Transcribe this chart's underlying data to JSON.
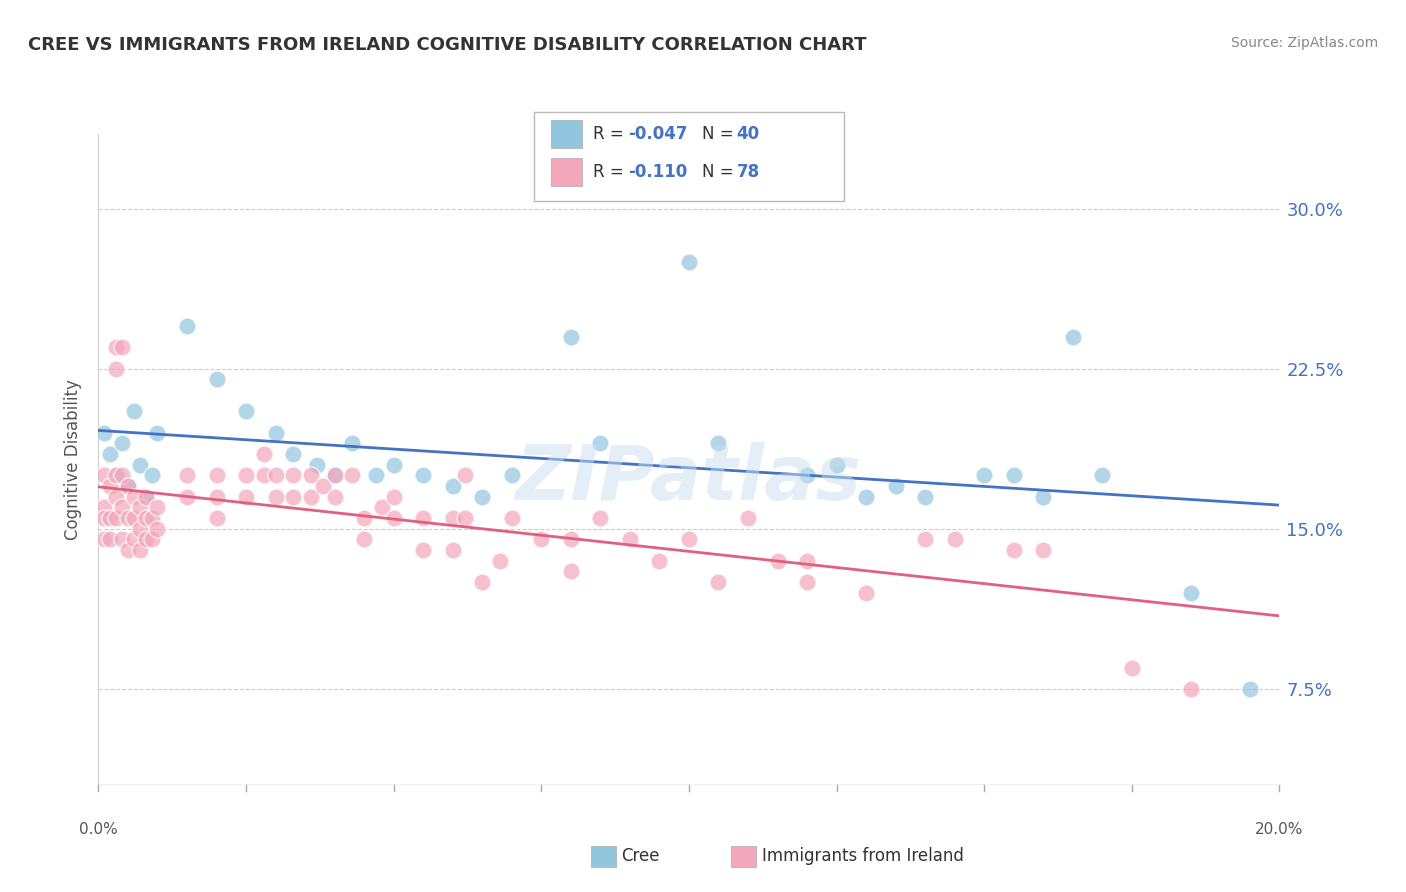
{
  "title": "CREE VS IMMIGRANTS FROM IRELAND COGNITIVE DISABILITY CORRELATION CHART",
  "source": "Source: ZipAtlas.com",
  "ylabel": "Cognitive Disability",
  "ytick_labels": [
    "7.5%",
    "15.0%",
    "22.5%",
    "30.0%"
  ],
  "ytick_values": [
    0.075,
    0.15,
    0.225,
    0.3
  ],
  "xmin": 0.0,
  "xmax": 0.2,
  "ymin": 0.03,
  "ymax": 0.335,
  "label_blue": "Cree",
  "label_pink": "Immigrants from Ireland",
  "color_blue": "#92c5de",
  "color_pink": "#f4a6bb",
  "color_line_blue": "#4472c4",
  "color_line_pink": "#e06080",
  "watermark": "ZIPatlas",
  "blue_points": [
    [
      0.001,
      0.195
    ],
    [
      0.002,
      0.185
    ],
    [
      0.003,
      0.175
    ],
    [
      0.004,
      0.19
    ],
    [
      0.005,
      0.17
    ],
    [
      0.006,
      0.205
    ],
    [
      0.007,
      0.18
    ],
    [
      0.008,
      0.165
    ],
    [
      0.009,
      0.175
    ],
    [
      0.01,
      0.195
    ],
    [
      0.015,
      0.245
    ],
    [
      0.02,
      0.22
    ],
    [
      0.025,
      0.205
    ],
    [
      0.03,
      0.195
    ],
    [
      0.033,
      0.185
    ],
    [
      0.037,
      0.18
    ],
    [
      0.04,
      0.175
    ],
    [
      0.043,
      0.19
    ],
    [
      0.047,
      0.175
    ],
    [
      0.05,
      0.18
    ],
    [
      0.055,
      0.175
    ],
    [
      0.06,
      0.17
    ],
    [
      0.065,
      0.165
    ],
    [
      0.07,
      0.175
    ],
    [
      0.08,
      0.24
    ],
    [
      0.085,
      0.19
    ],
    [
      0.1,
      0.275
    ],
    [
      0.105,
      0.19
    ],
    [
      0.12,
      0.175
    ],
    [
      0.125,
      0.18
    ],
    [
      0.13,
      0.165
    ],
    [
      0.135,
      0.17
    ],
    [
      0.14,
      0.165
    ],
    [
      0.15,
      0.175
    ],
    [
      0.155,
      0.175
    ],
    [
      0.16,
      0.165
    ],
    [
      0.165,
      0.24
    ],
    [
      0.17,
      0.175
    ],
    [
      0.185,
      0.12
    ],
    [
      0.195,
      0.075
    ]
  ],
  "pink_points": [
    [
      0.001,
      0.175
    ],
    [
      0.001,
      0.16
    ],
    [
      0.001,
      0.155
    ],
    [
      0.001,
      0.145
    ],
    [
      0.002,
      0.17
    ],
    [
      0.002,
      0.155
    ],
    [
      0.002,
      0.145
    ],
    [
      0.003,
      0.235
    ],
    [
      0.003,
      0.225
    ],
    [
      0.003,
      0.175
    ],
    [
      0.003,
      0.165
    ],
    [
      0.003,
      0.155
    ],
    [
      0.004,
      0.235
    ],
    [
      0.004,
      0.175
    ],
    [
      0.004,
      0.16
    ],
    [
      0.004,
      0.145
    ],
    [
      0.005,
      0.17
    ],
    [
      0.005,
      0.155
    ],
    [
      0.005,
      0.14
    ],
    [
      0.006,
      0.165
    ],
    [
      0.006,
      0.155
    ],
    [
      0.006,
      0.145
    ],
    [
      0.007,
      0.16
    ],
    [
      0.007,
      0.15
    ],
    [
      0.007,
      0.14
    ],
    [
      0.008,
      0.165
    ],
    [
      0.008,
      0.155
    ],
    [
      0.008,
      0.145
    ],
    [
      0.009,
      0.155
    ],
    [
      0.009,
      0.145
    ],
    [
      0.01,
      0.16
    ],
    [
      0.01,
      0.15
    ],
    [
      0.015,
      0.175
    ],
    [
      0.015,
      0.165
    ],
    [
      0.02,
      0.175
    ],
    [
      0.02,
      0.165
    ],
    [
      0.02,
      0.155
    ],
    [
      0.025,
      0.175
    ],
    [
      0.025,
      0.165
    ],
    [
      0.028,
      0.185
    ],
    [
      0.028,
      0.175
    ],
    [
      0.03,
      0.175
    ],
    [
      0.03,
      0.165
    ],
    [
      0.033,
      0.175
    ],
    [
      0.033,
      0.165
    ],
    [
      0.036,
      0.175
    ],
    [
      0.036,
      0.165
    ],
    [
      0.038,
      0.17
    ],
    [
      0.04,
      0.175
    ],
    [
      0.04,
      0.165
    ],
    [
      0.043,
      0.175
    ],
    [
      0.045,
      0.155
    ],
    [
      0.045,
      0.145
    ],
    [
      0.048,
      0.16
    ],
    [
      0.05,
      0.165
    ],
    [
      0.05,
      0.155
    ],
    [
      0.055,
      0.155
    ],
    [
      0.055,
      0.14
    ],
    [
      0.06,
      0.155
    ],
    [
      0.06,
      0.14
    ],
    [
      0.062,
      0.175
    ],
    [
      0.062,
      0.155
    ],
    [
      0.065,
      0.125
    ],
    [
      0.068,
      0.135
    ],
    [
      0.07,
      0.155
    ],
    [
      0.075,
      0.145
    ],
    [
      0.08,
      0.145
    ],
    [
      0.08,
      0.13
    ],
    [
      0.085,
      0.155
    ],
    [
      0.09,
      0.145
    ],
    [
      0.095,
      0.135
    ],
    [
      0.1,
      0.145
    ],
    [
      0.105,
      0.125
    ],
    [
      0.11,
      0.155
    ],
    [
      0.115,
      0.135
    ],
    [
      0.12,
      0.135
    ],
    [
      0.12,
      0.125
    ],
    [
      0.13,
      0.12
    ],
    [
      0.14,
      0.145
    ],
    [
      0.145,
      0.145
    ],
    [
      0.155,
      0.14
    ],
    [
      0.16,
      0.14
    ],
    [
      0.175,
      0.085
    ],
    [
      0.185,
      0.075
    ]
  ]
}
